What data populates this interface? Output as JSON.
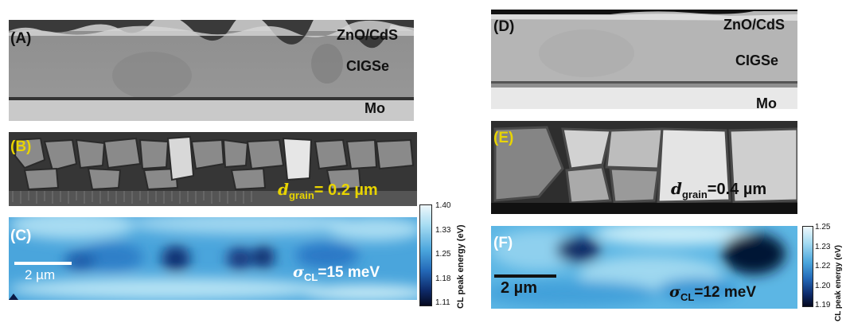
{
  "left": {
    "panel_a": {
      "label": "(A)",
      "layers": {
        "top": "ZnO/CdS",
        "middle": "CIGSe",
        "bottom": "Mo"
      }
    },
    "panel_b": {
      "label": "(B)",
      "d_symbol": "d",
      "d_sub": "grain",
      "d_value": "= 0.2 µm"
    },
    "panel_c": {
      "label": "(C)",
      "scale": "2 µm",
      "sigma_symbol": "σ",
      "sigma_sub": "CL",
      "sigma_value": "=15 meV"
    },
    "colorbar": {
      "title": "CL peak energy (eV)",
      "ticks": [
        "1.40",
        "1.33",
        "1.25",
        "1.18",
        "1.11"
      ]
    }
  },
  "right": {
    "panel_d": {
      "label": "(D)",
      "layers": {
        "top": "ZnO/CdS",
        "middle": "CIGSe",
        "bottom": "Mo"
      }
    },
    "panel_e": {
      "label": "(E)",
      "d_symbol": "d",
      "d_sub": "grain",
      "d_value": "=0.4 µm"
    },
    "panel_f": {
      "label": "(F)",
      "scale": "2 µm",
      "sigma_symbol": "σ",
      "sigma_sub": "CL",
      "sigma_value": "=12 meV"
    },
    "colorbar": {
      "title": "CL peak energy (eV)",
      "ticks": [
        "1.25",
        "1.23",
        "1.22",
        "1.20",
        "1.19"
      ]
    }
  },
  "colors": {
    "label_yellow": "#e8d400",
    "map_light": "#9fd8f0",
    "map_dark": "#0a1a45",
    "sem_gray": "#9a9a9a"
  }
}
